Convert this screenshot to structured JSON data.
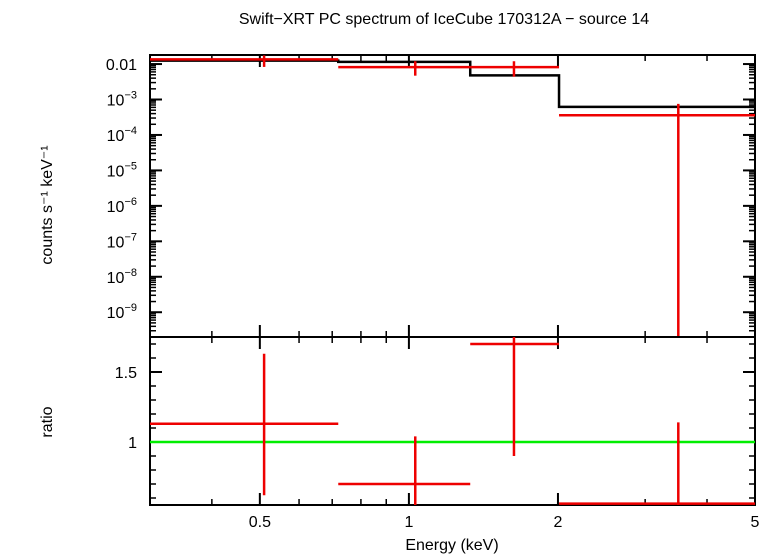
{
  "title": "Swift−XRT PC spectrum of IceCube 170312A − source 14",
  "xlabel": "Energy (keV)",
  "colors": {
    "data": "#ee0000",
    "model": "#000000",
    "unity": "#00ee00",
    "axes": "#000000"
  },
  "chart_data": [
    {
      "type": "line",
      "panel": "spectrum",
      "ylabel": "counts s⁻¹ keV⁻¹",
      "xscale": "log",
      "yscale": "log",
      "xlim": [
        0.3,
        5
      ],
      "ylim": [
        2e-10,
        0.018
      ],
      "yticks": [
        {
          "value": 0.01,
          "label": "0.01",
          "exp": ""
        },
        {
          "value": 0.001,
          "label": "10",
          "exp": "−3"
        },
        {
          "value": 0.0001,
          "label": "10",
          "exp": "−4"
        },
        {
          "value": 1e-05,
          "label": "10",
          "exp": "−5"
        },
        {
          "value": 1e-06,
          "label": "10",
          "exp": "−6"
        },
        {
          "value": 1e-07,
          "label": "10",
          "exp": "−7"
        },
        {
          "value": 1e-08,
          "label": "10",
          "exp": "−8"
        },
        {
          "value": 1e-09,
          "label": "10",
          "exp": "−9"
        }
      ],
      "series": [
        {
          "kind": "data-with-errors",
          "points": [
            {
              "xlo": 0.3,
              "xhi": 0.72,
              "x": 0.51,
              "y": 0.0135,
              "ylo": 0.0083,
              "yhi": 0.0175
            },
            {
              "xlo": 0.72,
              "xhi": 1.33,
              "x": 1.03,
              "y": 0.0082,
              "ylo": 0.0047,
              "yhi": 0.012
            },
            {
              "xlo": 1.33,
              "xhi": 2.01,
              "x": 1.63,
              "y": 0.0082,
              "ylo": 0.0044,
              "yhi": 0.012
            },
            {
              "xlo": 2.01,
              "xhi": 5.0,
              "x": 3.5,
              "y": 0.00036,
              "ylo": 2e-10,
              "yhi": 0.00075
            }
          ]
        },
        {
          "kind": "model-step",
          "steps": [
            {
              "xlo": 0.3,
              "xhi": 0.72,
              "y": 0.0125
            },
            {
              "xlo": 0.72,
              "xhi": 1.33,
              "y": 0.0115
            },
            {
              "xlo": 1.33,
              "xhi": 2.01,
              "y": 0.0048
            },
            {
              "xlo": 2.01,
              "xhi": 5.0,
              "y": 0.00062
            }
          ]
        }
      ]
    },
    {
      "type": "line",
      "panel": "ratio",
      "ylabel": "ratio",
      "xscale": "log",
      "yscale": "linear",
      "xlim": [
        0.3,
        5
      ],
      "ylim": [
        0.55,
        1.75
      ],
      "yticks": [
        {
          "value": 1,
          "label": "1"
        },
        {
          "value": 1.5,
          "label": "1.5"
        }
      ],
      "xticks": [
        {
          "value": 0.5,
          "label": "0.5"
        },
        {
          "value": 1,
          "label": "1"
        },
        {
          "value": 2,
          "label": "2"
        },
        {
          "value": 5,
          "label": "5"
        }
      ],
      "series": [
        {
          "kind": "data-with-errors",
          "points": [
            {
              "xlo": 0.3,
              "xhi": 0.72,
              "x": 0.51,
              "y": 1.13,
              "ylo": 0.62,
              "yhi": 1.63
            },
            {
              "xlo": 0.72,
              "xhi": 1.33,
              "x": 1.03,
              "y": 0.7,
              "ylo": 0.55,
              "yhi": 1.04
            },
            {
              "xlo": 1.33,
              "xhi": 2.01,
              "x": 1.63,
              "y": 1.7,
              "ylo": 0.9,
              "yhi": 1.75
            },
            {
              "xlo": 2.01,
              "xhi": 5.0,
              "x": 3.5,
              "y": 0.56,
              "ylo": 0.55,
              "yhi": 1.14
            }
          ]
        },
        {
          "kind": "unity-line",
          "y": 1
        }
      ]
    }
  ]
}
